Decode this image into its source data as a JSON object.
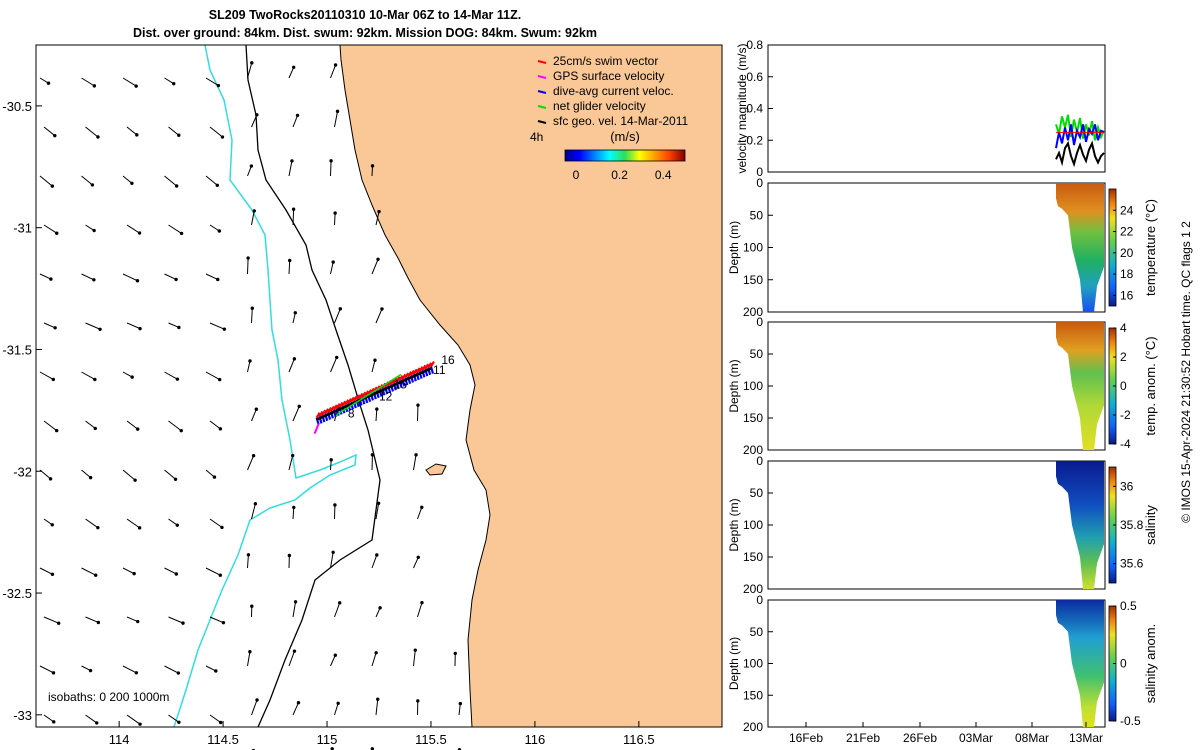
{
  "title_line1": "SL209 TwoRocks20110310 10-Mar 06Z to 14-Mar 11Z.",
  "title_line2": "Dist. over ground: 84km. Dist. swum: 92km. Mission DOG: 84km. Swum: 92km",
  "credit": "© IMOS 15-Apr-2024 21:30:52 Hobart time. QC flags 1  2",
  "colors": {
    "land": "#fac896",
    "isobath_200": "#000000",
    "isobath_1000": "#33dddd",
    "swim": "#ff0000",
    "gps": "#ff00ff",
    "current": "#0000ff",
    "net": "#00dd00",
    "geo": "#000000"
  },
  "chart_data": [
    {
      "type": "map",
      "xlim": [
        113.6,
        116.9
      ],
      "ylim": [
        -33.05,
        -30.25
      ],
      "xticks": [
        "114",
        "114.5",
        "115",
        "115.5",
        "116",
        "116.5"
      ],
      "xtick_values": [
        114,
        114.5,
        115,
        115.5,
        116,
        116.5
      ],
      "yticks": [
        "-30.5",
        "-31",
        "-31.5",
        "-32",
        "-32.5",
        "-33"
      ],
      "ytick_values": [
        -30.5,
        -31,
        -31.5,
        -32,
        -32.5,
        -33
      ],
      "isobaths_label": "isobaths: 0   200  1000m",
      "legend": {
        "items": [
          {
            "label": "25cm/s swim vector",
            "color": "#ff0000"
          },
          {
            "label": "GPS surface velocity",
            "color": "#ff00ff"
          },
          {
            "label": "dive-avg current veloc.",
            "color": "#0000ff"
          },
          {
            "label": "net glider velocity",
            "color": "#00dd00"
          },
          {
            "label": "sfc geo. vel. 14-Mar-2011",
            "color": "#000000"
          }
        ],
        "placement": "top-right"
      },
      "track_annotation": "4h",
      "colorbar": {
        "label": "(m/s)",
        "ticks": [
          "0",
          "0.2",
          "0.4"
        ],
        "tick_values": [
          0,
          0.2,
          0.4
        ],
        "range": [
          -0.05,
          0.5
        ]
      },
      "track_start": [
        114.95,
        -31.78
      ],
      "track_end": [
        115.5,
        -31.57
      ],
      "track_labels": [
        {
          "text": "16",
          "lon": 115.55,
          "lat": -31.56
        },
        {
          "text": "11",
          "lon": 115.51,
          "lat": -31.6
        },
        {
          "text": "15",
          "lon": 115.32,
          "lat": -31.66
        },
        {
          "text": "12",
          "lon": 115.25,
          "lat": -31.71
        },
        {
          "text": "8",
          "lon": 115.1,
          "lat": -31.78
        }
      ]
    },
    {
      "type": "line",
      "ylabel": "velocity magnitude (m/s)",
      "ylim": [
        0,
        0.8
      ],
      "yticks": [
        "0",
        "0.2",
        "0.4",
        "0.6",
        "0.8"
      ],
      "ytick_values": [
        0,
        0.2,
        0.4,
        0.6,
        0.8
      ],
      "x": [
        0,
        0.5,
        1,
        1.5,
        2,
        2.5,
        3,
        3.5,
        4,
        4.5,
        5,
        5.5,
        6,
        6.5,
        7,
        7.5,
        8
      ],
      "series": [
        {
          "color": "#00dd00",
          "values": [
            0.3,
            0.24,
            0.35,
            0.28,
            0.36,
            0.22,
            0.33,
            0.25,
            0.34,
            0.21,
            0.3,
            0.23,
            0.32,
            0.2,
            0.28,
            0.22,
            0.26
          ]
        },
        {
          "color": "#0000ff",
          "values": [
            0.15,
            0.25,
            0.18,
            0.28,
            0.2,
            0.3,
            0.17,
            0.26,
            0.22,
            0.3,
            0.19,
            0.27,
            0.24,
            0.3,
            0.2,
            0.26,
            0.25
          ]
        },
        {
          "color": "#000000",
          "values": [
            0.08,
            0.12,
            0.06,
            0.15,
            0.18,
            0.1,
            0.05,
            0.12,
            0.17,
            0.11,
            0.07,
            0.14,
            0.18,
            0.1,
            0.06,
            0.1,
            0.12
          ]
        },
        {
          "color": "#ff0000",
          "values": [
            0.25,
            0.25,
            0.25,
            0.25,
            0.25,
            0.25,
            0.25,
            0.25,
            0.25,
            0.25,
            0.25,
            0.25,
            0.25,
            0.25,
            0.25,
            0.25,
            0.25
          ]
        }
      ]
    },
    {
      "type": "heatmap",
      "ylabel": "Depth (m)",
      "clabel": "temperature (°C)",
      "yticks": [
        "0",
        "50",
        "100",
        "150",
        "200"
      ],
      "ytick_values": [
        0,
        50,
        100,
        150,
        200
      ],
      "cticks": [
        "16",
        "18",
        "20",
        "22",
        "24"
      ],
      "ctick_values": [
        16,
        18,
        20,
        22,
        24
      ],
      "clim": [
        15,
        26
      ]
    },
    {
      "type": "heatmap",
      "ylabel": "Depth (m)",
      "clabel": "temp. anom. (°C)",
      "yticks": [
        "0",
        "50",
        "100",
        "150",
        "200"
      ],
      "ytick_values": [
        0,
        50,
        100,
        150,
        200
      ],
      "cticks": [
        "-4",
        "-2",
        "0",
        "2",
        "4"
      ],
      "ctick_values": [
        -4,
        -2,
        0,
        2,
        4
      ],
      "clim": [
        -4,
        4
      ]
    },
    {
      "type": "heatmap",
      "ylabel": "Depth (m)",
      "clabel": "salinity",
      "yticks": [
        "0",
        "50",
        "100",
        "150",
        "200"
      ],
      "ytick_values": [
        0,
        50,
        100,
        150,
        200
      ],
      "cticks": [
        "35.6",
        "35.8",
        "36"
      ],
      "ctick_values": [
        35.6,
        35.8,
        36.0
      ],
      "clim": [
        35.5,
        36.1
      ]
    },
    {
      "type": "heatmap",
      "ylabel": "Depth (m)",
      "clabel": "salinity anom.",
      "yticks": [
        "0",
        "50",
        "100",
        "150",
        "200"
      ],
      "ytick_values": [
        0,
        50,
        100,
        150,
        200
      ],
      "cticks": [
        "-0.5",
        "0",
        "0.5"
      ],
      "ctick_values": [
        -0.5,
        0,
        0.5
      ],
      "clim": [
        -0.5,
        0.5
      ],
      "xticks": [
        "16Feb",
        "21Feb",
        "26Feb",
        "03Mar",
        "08Mar",
        "13Mar"
      ]
    }
  ]
}
